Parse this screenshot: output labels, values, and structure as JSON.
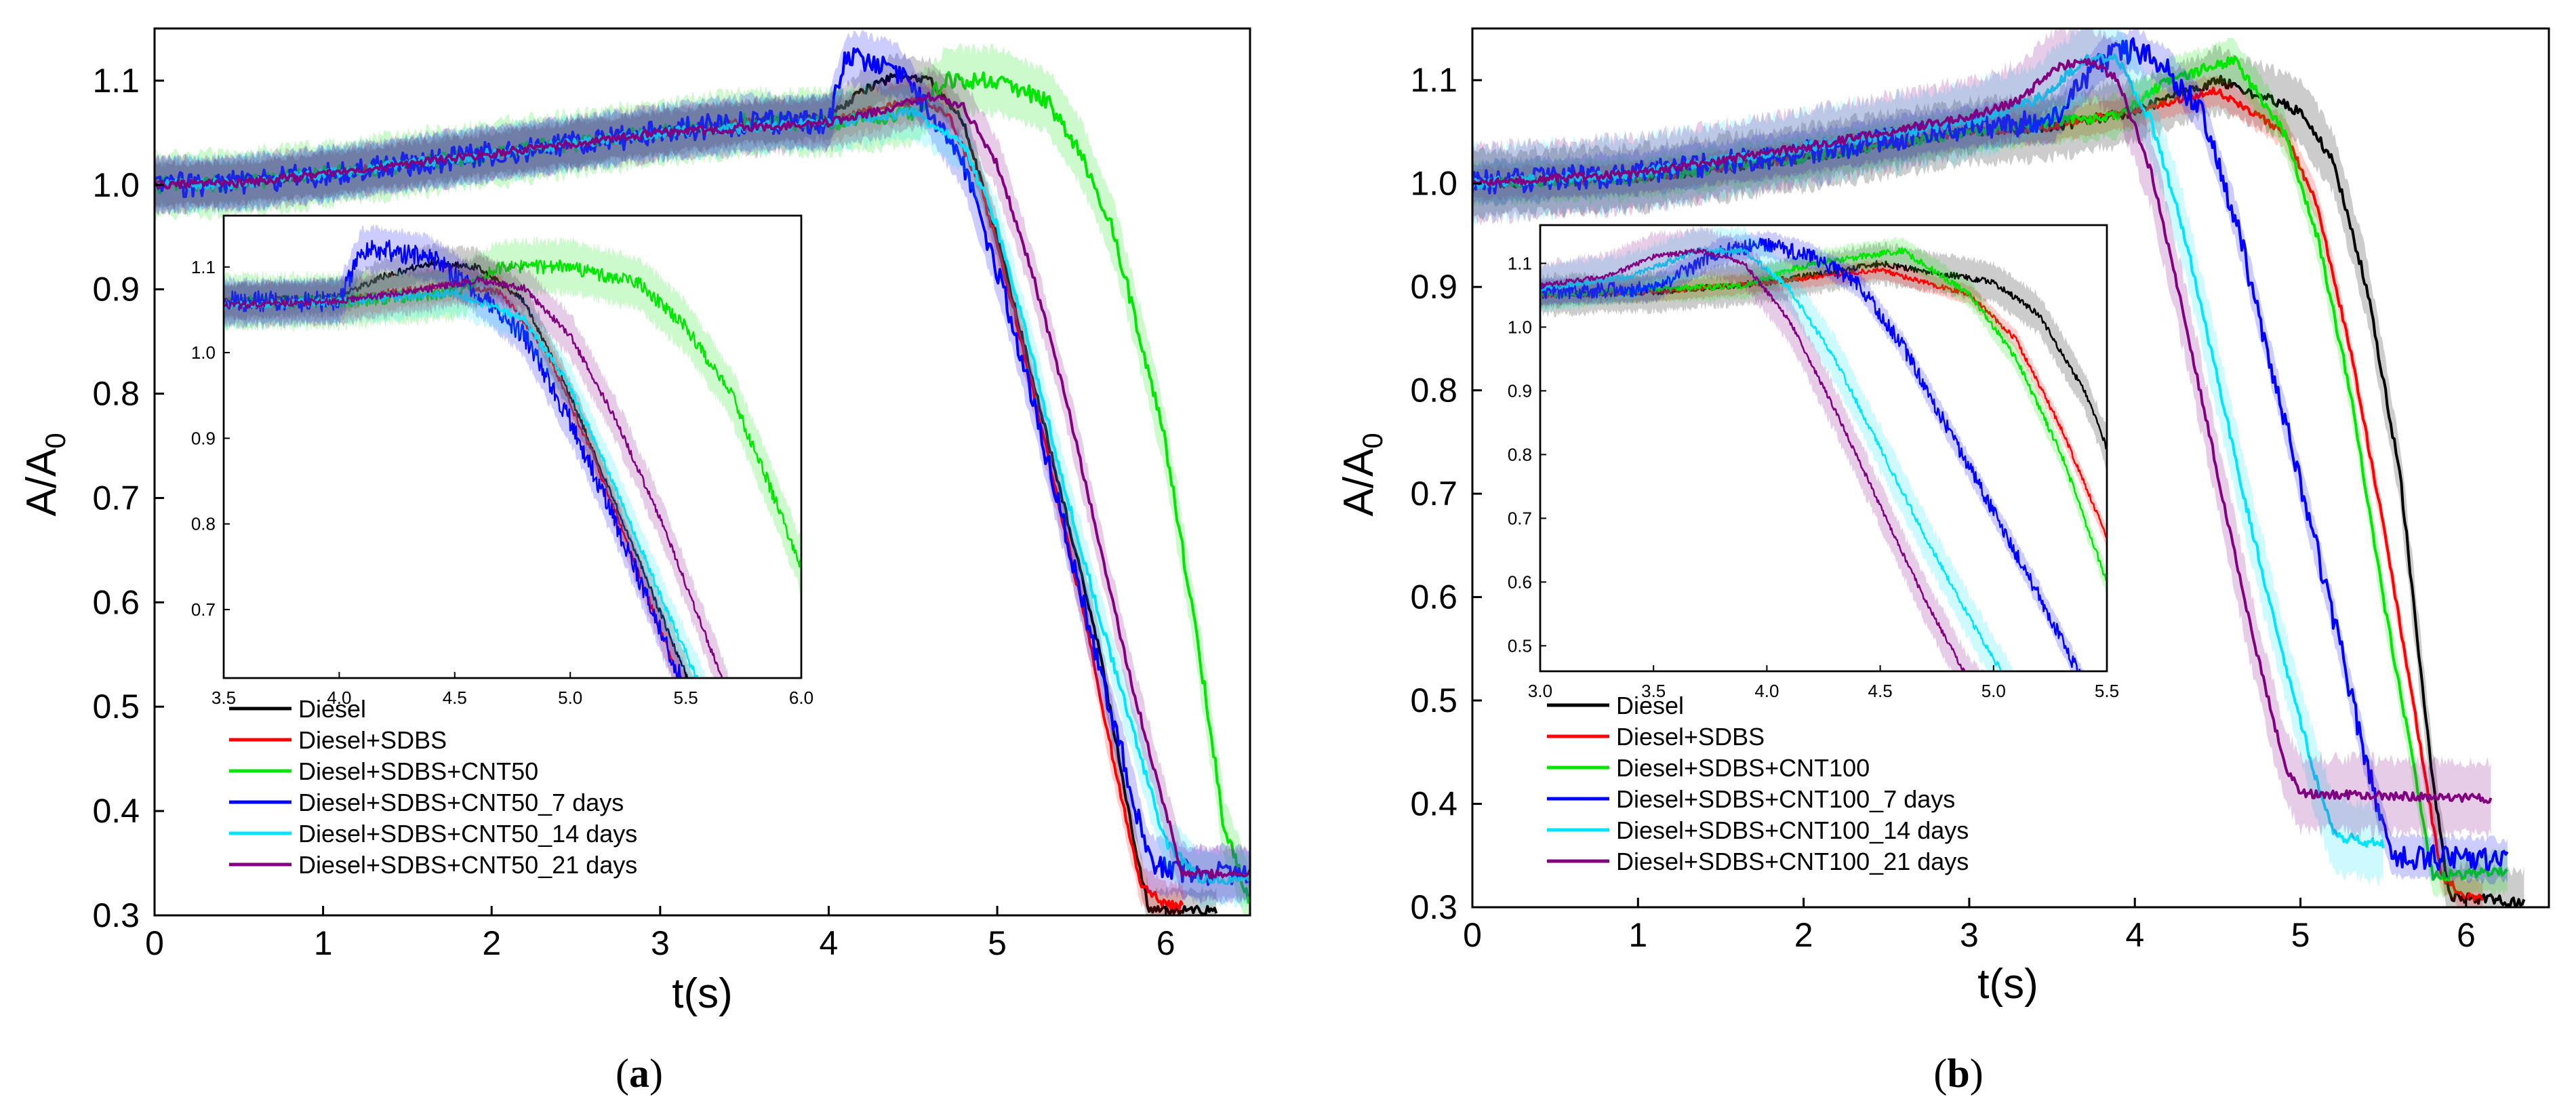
{
  "chart_data": [
    {
      "type": "line",
      "panel": "(a)",
      "panel_letter": "a",
      "xlabel": "t(s)",
      "ylabel_main": "A/A",
      "ylabel_sub": "0",
      "xlim": [
        0,
        6.5
      ],
      "ylim": [
        0.3,
        1.15
      ],
      "xticks": [
        0,
        1,
        2,
        3,
        4,
        5,
        6
      ],
      "yticks": [
        0.3,
        0.4,
        0.5,
        0.6,
        0.7,
        0.8,
        0.9,
        1.0,
        1.1
      ],
      "xtick_labels": [
        "0",
        "1",
        "2",
        "3",
        "4",
        "5",
        "6"
      ],
      "ytick_labels": [
        "0.3",
        "0.4",
        "0.5",
        "0.6",
        "0.7",
        "0.8",
        "0.9",
        "1.0",
        "1.1"
      ],
      "legend_position": "lower-left",
      "series": [
        {
          "name": "Diesel",
          "color": "#000000",
          "band": 0.02,
          "noise": 0.004,
          "points": [
            [
              0,
              1.0
            ],
            [
              0.5,
              1.002
            ],
            [
              1,
              1.01
            ],
            [
              1.5,
              1.02
            ],
            [
              2,
              1.03
            ],
            [
              2.5,
              1.04
            ],
            [
              3,
              1.05
            ],
            [
              3.5,
              1.06
            ],
            [
              4,
              1.065
            ],
            [
              4.2,
              1.09
            ],
            [
              4.4,
              1.105
            ],
            [
              4.6,
              1.1
            ],
            [
              4.8,
              1.06
            ],
            [
              5,
              0.95
            ],
            [
              5.2,
              0.82
            ],
            [
              5.4,
              0.69
            ],
            [
              5.6,
              0.56
            ],
            [
              5.8,
              0.38
            ],
            [
              5.9,
              0.305
            ],
            [
              6.3,
              0.305
            ]
          ]
        },
        {
          "name": "Diesel+SDBS",
          "color": "#ff0000",
          "band": 0.02,
          "noise": 0.004,
          "points": [
            [
              0,
              1.0
            ],
            [
              0.5,
              1.002
            ],
            [
              1,
              1.01
            ],
            [
              1.5,
              1.02
            ],
            [
              2,
              1.03
            ],
            [
              2.5,
              1.04
            ],
            [
              3,
              1.05
            ],
            [
              3.5,
              1.06
            ],
            [
              4,
              1.06
            ],
            [
              4.2,
              1.07
            ],
            [
              4.5,
              1.08
            ],
            [
              4.7,
              1.07
            ],
            [
              4.9,
              1.0
            ],
            [
              5.1,
              0.88
            ],
            [
              5.3,
              0.74
            ],
            [
              5.5,
              0.6
            ],
            [
              5.7,
              0.44
            ],
            [
              5.85,
              0.33
            ],
            [
              6.0,
              0.31
            ],
            [
              6.1,
              0.31
            ]
          ]
        },
        {
          "name": "Diesel+SDBS+CNT50",
          "color": "#00e600",
          "band": 0.03,
          "noise": 0.008,
          "points": [
            [
              0,
              1.0
            ],
            [
              0.5,
              1.002
            ],
            [
              1,
              1.01
            ],
            [
              1.5,
              1.02
            ],
            [
              2,
              1.03
            ],
            [
              2.5,
              1.04
            ],
            [
              3,
              1.05
            ],
            [
              3.5,
              1.06
            ],
            [
              4,
              1.06
            ],
            [
              4.5,
              1.07
            ],
            [
              4.7,
              1.1
            ],
            [
              5.0,
              1.1
            ],
            [
              5.3,
              1.08
            ],
            [
              5.5,
              1.03
            ],
            [
              5.7,
              0.95
            ],
            [
              5.9,
              0.82
            ],
            [
              6.0,
              0.75
            ],
            [
              6.2,
              0.55
            ],
            [
              6.35,
              0.38
            ],
            [
              6.5,
              0.315
            ]
          ]
        },
        {
          "name": "Diesel+SDBS+CNT50_7 days",
          "color": "#0000ff",
          "band": 0.025,
          "noise": 0.012,
          "points": [
            [
              0,
              1.0
            ],
            [
              0.5,
              1.002
            ],
            [
              1,
              1.01
            ],
            [
              1.5,
              1.02
            ],
            [
              2,
              1.03
            ],
            [
              2.5,
              1.04
            ],
            [
              3,
              1.05
            ],
            [
              3.5,
              1.06
            ],
            [
              4,
              1.06
            ],
            [
              4.1,
              1.12
            ],
            [
              4.2,
              1.12
            ],
            [
              4.4,
              1.11
            ],
            [
              4.6,
              1.07
            ],
            [
              4.8,
              1.02
            ],
            [
              5.0,
              0.92
            ],
            [
              5.2,
              0.8
            ],
            [
              5.4,
              0.67
            ],
            [
              5.6,
              0.54
            ],
            [
              5.75,
              0.45
            ],
            [
              5.9,
              0.35
            ],
            [
              6.2,
              0.34
            ],
            [
              6.5,
              0.34
            ]
          ]
        },
        {
          "name": "Diesel+SDBS+CNT50_14 days",
          "color": "#00e5ff",
          "band": 0.025,
          "noise": 0.005,
          "points": [
            [
              0,
              1.0
            ],
            [
              0.5,
              1.002
            ],
            [
              1,
              1.01
            ],
            [
              1.5,
              1.02
            ],
            [
              2,
              1.03
            ],
            [
              2.5,
              1.04
            ],
            [
              3,
              1.05
            ],
            [
              3.5,
              1.055
            ],
            [
              4,
              1.06
            ],
            [
              4.5,
              1.07
            ],
            [
              4.8,
              1.04
            ],
            [
              5.0,
              0.96
            ],
            [
              5.2,
              0.84
            ],
            [
              5.4,
              0.71
            ],
            [
              5.6,
              0.59
            ],
            [
              5.8,
              0.48
            ],
            [
              6.0,
              0.37
            ],
            [
              6.2,
              0.335
            ],
            [
              6.5,
              0.335
            ]
          ]
        },
        {
          "name": "Diesel+SDBS+CNT50_21 days",
          "color": "#800080",
          "band": 0.025,
          "noise": 0.004,
          "points": [
            [
              0,
              1.0
            ],
            [
              0.5,
              1.002
            ],
            [
              1,
              1.01
            ],
            [
              1.5,
              1.02
            ],
            [
              2,
              1.03
            ],
            [
              2.5,
              1.04
            ],
            [
              3,
              1.05
            ],
            [
              3.5,
              1.055
            ],
            [
              4,
              1.06
            ],
            [
              4.4,
              1.075
            ],
            [
              4.6,
              1.085
            ],
            [
              4.8,
              1.075
            ],
            [
              5.0,
              1.02
            ],
            [
              5.2,
              0.92
            ],
            [
              5.4,
              0.8
            ],
            [
              5.6,
              0.66
            ],
            [
              5.8,
              0.52
            ],
            [
              6.0,
              0.4
            ],
            [
              6.1,
              0.34
            ],
            [
              6.5,
              0.34
            ]
          ]
        }
      ],
      "inset": {
        "xlim": [
          3.5,
          6.0
        ],
        "ylim": [
          0.62,
          1.16
        ],
        "xticks": [
          3.5,
          4.0,
          4.5,
          5.0,
          5.5,
          6.0
        ],
        "yticks": [
          0.7,
          0.8,
          0.9,
          1.0,
          1.1
        ],
        "xtick_labels": [
          "3.5",
          "4.0",
          "4.5",
          "5.0",
          "5.5",
          "6.0"
        ],
        "ytick_labels": [
          "0.7",
          "0.8",
          "0.9",
          "1.0",
          "1.1"
        ]
      }
    },
    {
      "type": "line",
      "panel": "(b)",
      "panel_letter": "b",
      "xlabel": "t(s)",
      "ylabel_main": "A/A",
      "ylabel_sub": "0",
      "xlim": [
        0,
        6.5
      ],
      "ylim": [
        0.3,
        1.15
      ],
      "xticks": [
        0,
        1,
        2,
        3,
        4,
        5,
        6
      ],
      "yticks": [
        0.3,
        0.4,
        0.5,
        0.6,
        0.7,
        0.8,
        0.9,
        1.0,
        1.1
      ],
      "xtick_labels": [
        "0",
        "1",
        "2",
        "3",
        "4",
        "5",
        "6"
      ],
      "ytick_labels": [
        "0.3",
        "0.4",
        "0.5",
        "0.6",
        "0.7",
        "0.8",
        "0.9",
        "1.0",
        "1.1"
      ],
      "legend_position": "lower-left",
      "series": [
        {
          "name": "Diesel",
          "color": "#000000",
          "band": 0.03,
          "noise": 0.005,
          "points": [
            [
              0,
              1.0
            ],
            [
              1,
              1.005
            ],
            [
              2,
              1.025
            ],
            [
              3,
              1.05
            ],
            [
              3.5,
              1.055
            ],
            [
              4,
              1.07
            ],
            [
              4.5,
              1.1
            ],
            [
              5,
              1.07
            ],
            [
              5.2,
              1.02
            ],
            [
              5.4,
              0.9
            ],
            [
              5.6,
              0.72
            ],
            [
              5.8,
              0.42
            ],
            [
              5.9,
              0.31
            ],
            [
              6.35,
              0.305
            ]
          ]
        },
        {
          "name": "Diesel+SDBS",
          "color": "#ff0000",
          "band": 0.015,
          "noise": 0.004,
          "points": [
            [
              0,
              1.0
            ],
            [
              1,
              1.005
            ],
            [
              2,
              1.025
            ],
            [
              3,
              1.05
            ],
            [
              3.5,
              1.055
            ],
            [
              4,
              1.07
            ],
            [
              4.5,
              1.09
            ],
            [
              4.9,
              1.05
            ],
            [
              5.1,
              0.98
            ],
            [
              5.3,
              0.84
            ],
            [
              5.5,
              0.67
            ],
            [
              5.7,
              0.48
            ],
            [
              5.85,
              0.33
            ],
            [
              6.0,
              0.31
            ],
            [
              6.1,
              0.31
            ]
          ]
        },
        {
          "name": "Diesel+SDBS+CNT100",
          "color": "#00e600",
          "band": 0.02,
          "noise": 0.005,
          "points": [
            [
              0,
              1.0
            ],
            [
              1,
              1.005
            ],
            [
              2,
              1.025
            ],
            [
              3,
              1.05
            ],
            [
              3.5,
              1.06
            ],
            [
              3.9,
              1.065
            ],
            [
              4.2,
              1.1
            ],
            [
              4.6,
              1.12
            ],
            [
              4.9,
              1.05
            ],
            [
              5.1,
              0.95
            ],
            [
              5.3,
              0.8
            ],
            [
              5.5,
              0.6
            ],
            [
              5.7,
              0.42
            ],
            [
              5.8,
              0.33
            ],
            [
              6.25,
              0.335
            ]
          ]
        },
        {
          "name": "Diesel+SDBS+CNT100_7 days",
          "color": "#0000ff",
          "band": 0.02,
          "noise": 0.012,
          "points": [
            [
              0,
              1.0
            ],
            [
              1,
              1.01
            ],
            [
              2,
              1.03
            ],
            [
              3,
              1.055
            ],
            [
              3.5,
              1.06
            ],
            [
              3.8,
              1.12
            ],
            [
              4,
              1.13
            ],
            [
              4.2,
              1.11
            ],
            [
              4.4,
              1.07
            ],
            [
              4.6,
              0.97
            ],
            [
              4.8,
              0.84
            ],
            [
              5.0,
              0.71
            ],
            [
              5.2,
              0.58
            ],
            [
              5.4,
              0.44
            ],
            [
              5.55,
              0.35
            ],
            [
              6.25,
              0.345
            ]
          ]
        },
        {
          "name": "Diesel+SDBS+CNT100_14 days",
          "color": "#00e5ff",
          "band": 0.035,
          "noise": 0.005,
          "points": [
            [
              0,
              1.0
            ],
            [
              1,
              1.01
            ],
            [
              2,
              1.035
            ],
            [
              3,
              1.06
            ],
            [
              3.4,
              1.08
            ],
            [
              3.7,
              1.12
            ],
            [
              3.9,
              1.12
            ],
            [
              4.1,
              1.06
            ],
            [
              4.3,
              0.95
            ],
            [
              4.5,
              0.81
            ],
            [
              4.7,
              0.67
            ],
            [
              4.9,
              0.54
            ],
            [
              5.1,
              0.42
            ],
            [
              5.2,
              0.37
            ],
            [
              5.5,
              0.36
            ]
          ]
        },
        {
          "name": "Diesel+SDBS+CNT100_21 days",
          "color": "#800080",
          "band": 0.035,
          "noise": 0.004,
          "points": [
            [
              0,
              1.0
            ],
            [
              1,
              1.01
            ],
            [
              2,
              1.035
            ],
            [
              3,
              1.065
            ],
            [
              3.3,
              1.08
            ],
            [
              3.5,
              1.11
            ],
            [
              3.7,
              1.12
            ],
            [
              3.9,
              1.1
            ],
            [
              4.1,
              1.01
            ],
            [
              4.3,
              0.87
            ],
            [
              4.5,
              0.72
            ],
            [
              4.7,
              0.57
            ],
            [
              4.9,
              0.44
            ],
            [
              5.0,
              0.41
            ],
            [
              6.15,
              0.405
            ]
          ]
        }
      ],
      "inset": {
        "xlim": [
          3.0,
          5.5
        ],
        "ylim": [
          0.46,
          1.16
        ],
        "xticks": [
          3.0,
          3.5,
          4.0,
          4.5,
          5.0,
          5.5
        ],
        "yticks": [
          0.5,
          0.6,
          0.7,
          0.8,
          0.9,
          1.0,
          1.1
        ],
        "xtick_labels": [
          "3.0",
          "3.5",
          "4.0",
          "4.5",
          "5.0",
          "5.5"
        ],
        "ytick_labels": [
          "0.5",
          "0.6",
          "0.7",
          "0.8",
          "0.9",
          "1.0",
          "1.1"
        ]
      }
    }
  ]
}
